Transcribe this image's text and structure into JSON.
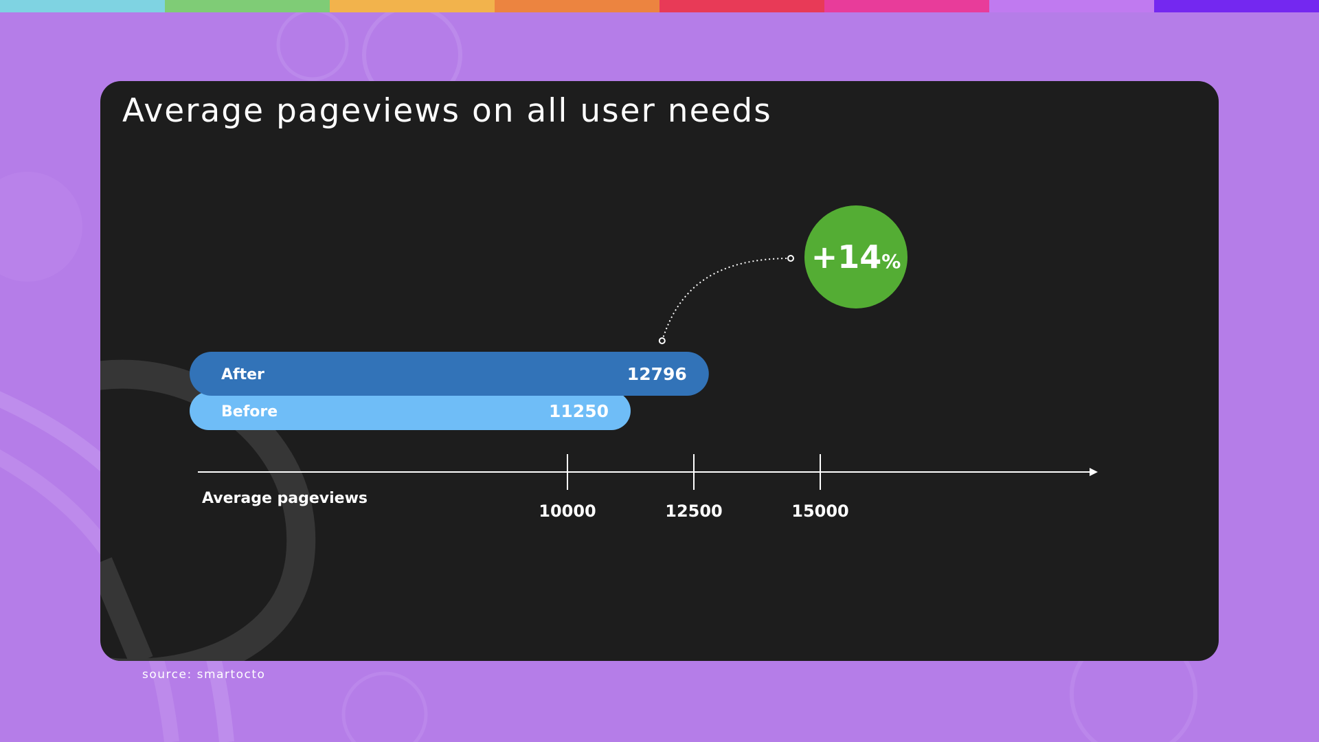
{
  "palette": {
    "background": "#b57de8",
    "card": "#1d1d1d",
    "stripes": [
      "#7fd3e2",
      "#7fcc76",
      "#f2b34c",
      "#ec8440",
      "#e83a57",
      "#e83c9a",
      "#c07af0",
      "#7428f0"
    ]
  },
  "slide": {
    "title": "Average pageviews on all user needs",
    "source": "source: smartocto"
  },
  "chart_data": {
    "type": "bar",
    "orientation": "horizontal",
    "categories": [
      "After",
      "Before"
    ],
    "values": [
      12796,
      11250
    ],
    "bar_colors": [
      "#3273b8",
      "#6fbdf7"
    ],
    "xlabel": "Average pageviews",
    "xticks": [
      10000,
      12500,
      15000
    ],
    "callout": {
      "label": "+14",
      "unit": "%",
      "color": "#54ad34"
    },
    "grid": false,
    "legend": "none"
  }
}
